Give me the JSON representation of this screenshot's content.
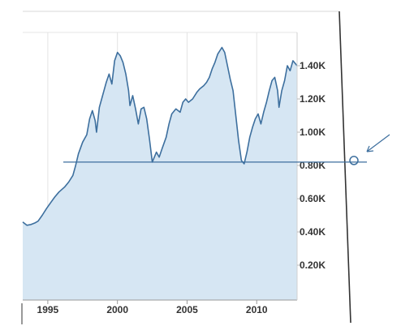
{
  "chart_data": {
    "type": "area",
    "title": "",
    "xlabel": "",
    "ylabel": "",
    "xlim": [
      1993.2,
      2012.9
    ],
    "ylim": [
      0,
      1600
    ],
    "x_ticks": [
      {
        "value": 1995,
        "label": "1995"
      },
      {
        "value": 2000,
        "label": "2000"
      },
      {
        "value": 2005,
        "label": "2005"
      },
      {
        "value": 2010,
        "label": "2010"
      }
    ],
    "y_ticks": [
      {
        "value": 1400,
        "label": "1.40K"
      },
      {
        "value": 1200,
        "label": "1.20K"
      },
      {
        "value": 1000,
        "label": "1.00K"
      },
      {
        "value": 800,
        "label": "0.80K"
      },
      {
        "value": 600,
        "label": "0.60K"
      },
      {
        "value": 400,
        "label": "0.40K"
      },
      {
        "value": 200,
        "label": "0.20K"
      }
    ],
    "grid": "vertical",
    "reference_line": {
      "value": 820
    },
    "series": [
      {
        "line_color": "#3d6f9e",
        "fill_color": "#d6e6f3",
        "points": [
          [
            1993.2,
            460
          ],
          [
            1993.5,
            440
          ],
          [
            1993.8,
            445
          ],
          [
            1994.1,
            455
          ],
          [
            1994.3,
            465
          ],
          [
            1994.6,
            500
          ],
          [
            1994.9,
            540
          ],
          [
            1995.2,
            575
          ],
          [
            1995.5,
            610
          ],
          [
            1995.8,
            640
          ],
          [
            1996.2,
            670
          ],
          [
            1996.5,
            700
          ],
          [
            1996.8,
            740
          ],
          [
            1997.0,
            800
          ],
          [
            1997.2,
            870
          ],
          [
            1997.5,
            940
          ],
          [
            1997.8,
            985
          ],
          [
            1998.0,
            1080
          ],
          [
            1998.2,
            1130
          ],
          [
            1998.4,
            1070
          ],
          [
            1998.5,
            1000
          ],
          [
            1998.7,
            1150
          ],
          [
            1998.9,
            1210
          ],
          [
            1999.2,
            1300
          ],
          [
            1999.4,
            1350
          ],
          [
            1999.6,
            1290
          ],
          [
            1999.8,
            1430
          ],
          [
            2000.0,
            1480
          ],
          [
            2000.2,
            1460
          ],
          [
            2000.4,
            1420
          ],
          [
            2000.6,
            1350
          ],
          [
            2000.8,
            1250
          ],
          [
            2000.9,
            1160
          ],
          [
            2001.1,
            1220
          ],
          [
            2001.3,
            1140
          ],
          [
            2001.5,
            1050
          ],
          [
            2001.7,
            1140
          ],
          [
            2001.9,
            1150
          ],
          [
            2002.1,
            1080
          ],
          [
            2002.3,
            960
          ],
          [
            2002.5,
            820
          ],
          [
            2002.8,
            880
          ],
          [
            2003.0,
            850
          ],
          [
            2003.2,
            900
          ],
          [
            2003.5,
            970
          ],
          [
            2003.7,
            1050
          ],
          [
            2003.9,
            1110
          ],
          [
            2004.2,
            1140
          ],
          [
            2004.5,
            1120
          ],
          [
            2004.7,
            1180
          ],
          [
            2004.9,
            1200
          ],
          [
            2005.1,
            1180
          ],
          [
            2005.4,
            1200
          ],
          [
            2005.7,
            1240
          ],
          [
            2005.9,
            1260
          ],
          [
            2006.2,
            1280
          ],
          [
            2006.4,
            1300
          ],
          [
            2006.6,
            1330
          ],
          [
            2006.8,
            1380
          ],
          [
            2007.0,
            1420
          ],
          [
            2007.2,
            1470
          ],
          [
            2007.5,
            1510
          ],
          [
            2007.7,
            1480
          ],
          [
            2007.9,
            1400
          ],
          [
            2008.1,
            1320
          ],
          [
            2008.3,
            1250
          ],
          [
            2008.5,
            1100
          ],
          [
            2008.7,
            950
          ],
          [
            2008.9,
            830
          ],
          [
            2009.1,
            810
          ],
          [
            2009.3,
            880
          ],
          [
            2009.5,
            970
          ],
          [
            2009.7,
            1030
          ],
          [
            2009.9,
            1080
          ],
          [
            2010.1,
            1110
          ],
          [
            2010.3,
            1050
          ],
          [
            2010.5,
            1120
          ],
          [
            2010.7,
            1180
          ],
          [
            2010.9,
            1250
          ],
          [
            2011.1,
            1310
          ],
          [
            2011.3,
            1330
          ],
          [
            2011.5,
            1250
          ],
          [
            2011.6,
            1150
          ],
          [
            2011.8,
            1250
          ],
          [
            2012.0,
            1310
          ],
          [
            2012.2,
            1400
          ],
          [
            2012.4,
            1370
          ],
          [
            2012.6,
            1430
          ],
          [
            2012.9,
            1400
          ]
        ]
      }
    ]
  }
}
